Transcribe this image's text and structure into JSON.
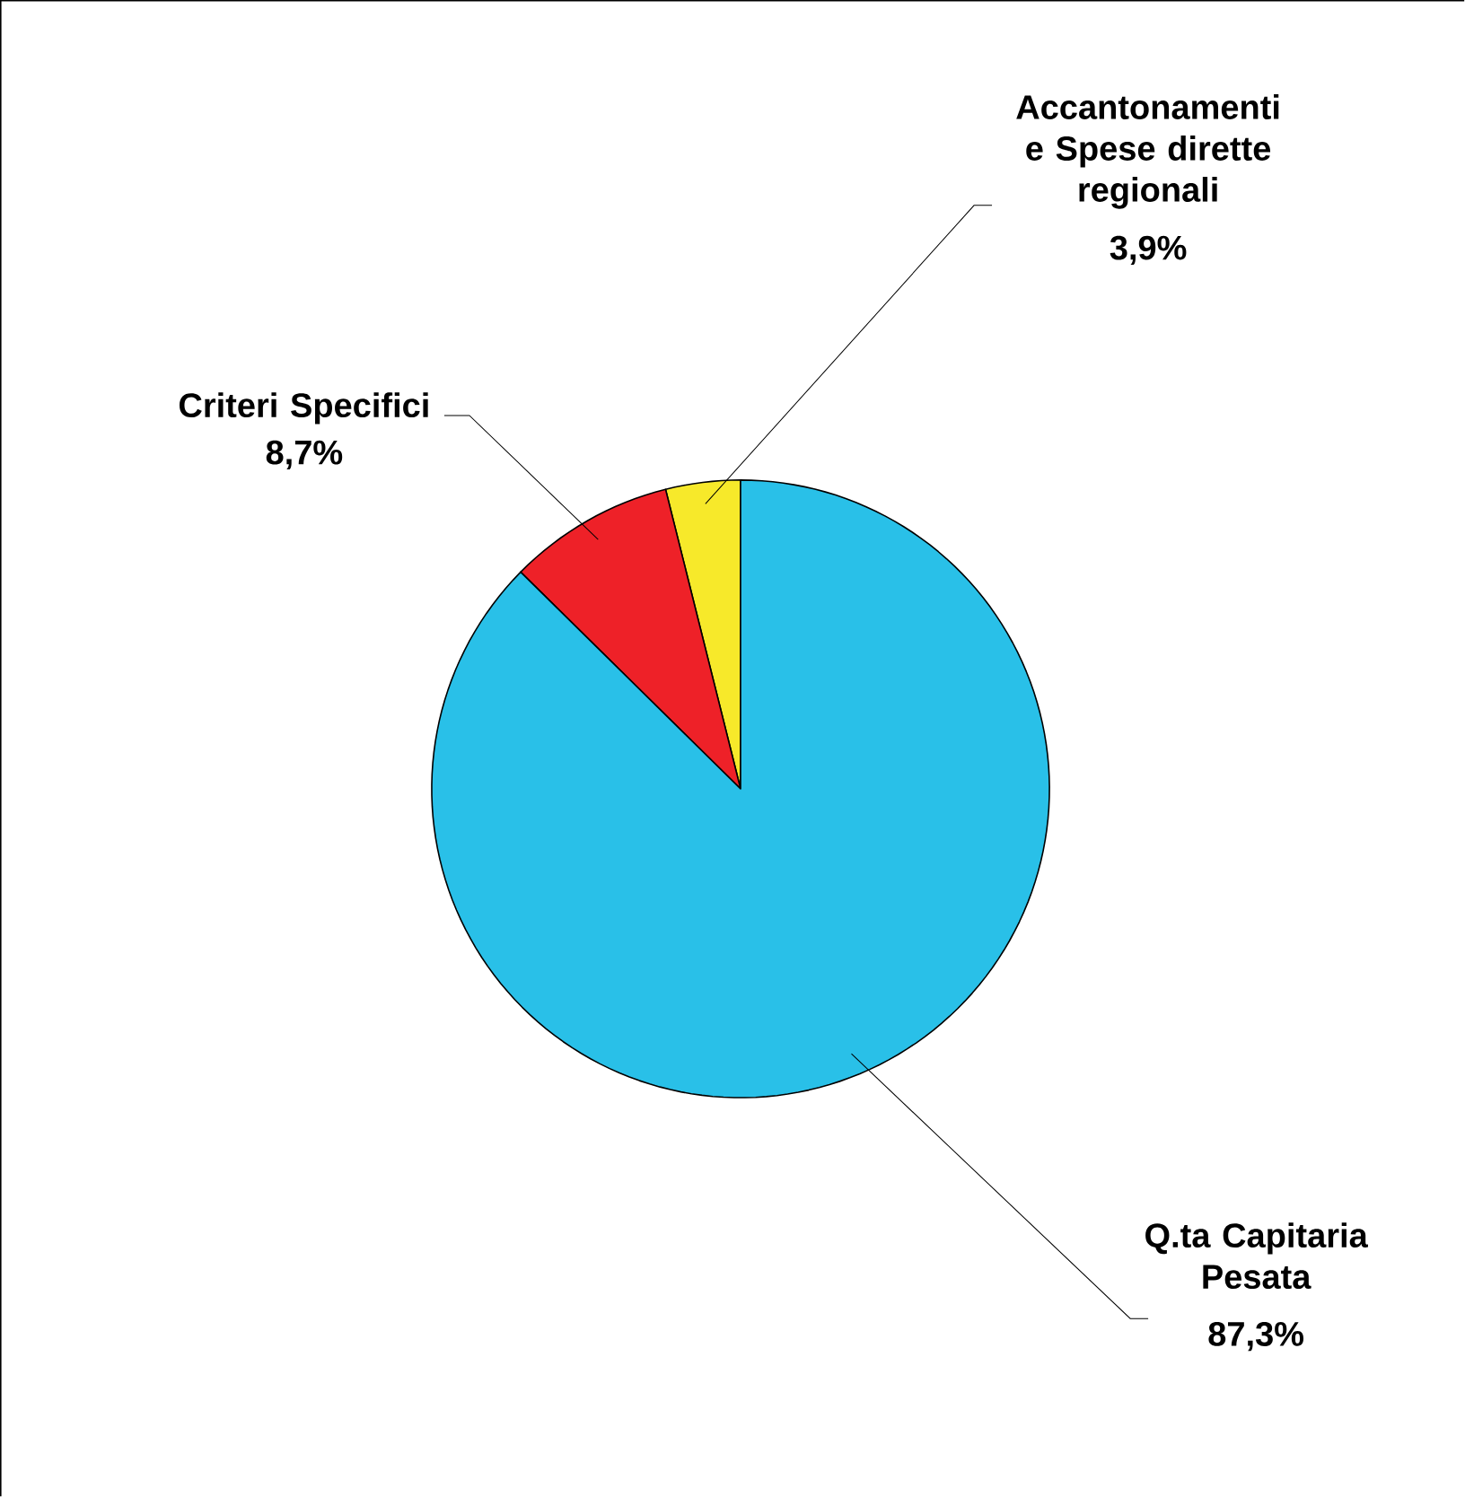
{
  "chart_data": {
    "type": "pie",
    "categories": [
      "Accantonamenti e Spese dirette regionali",
      "Criteri Specifici",
      "Q.ta Capitaria Pesata"
    ],
    "values": [
      3.9,
      8.7,
      87.3
    ],
    "colors": [
      "#f7e92a",
      "#ee2128",
      "#29c0e8"
    ],
    "value_labels": [
      "3,9%",
      "8,7%",
      "87,3%"
    ]
  }
}
